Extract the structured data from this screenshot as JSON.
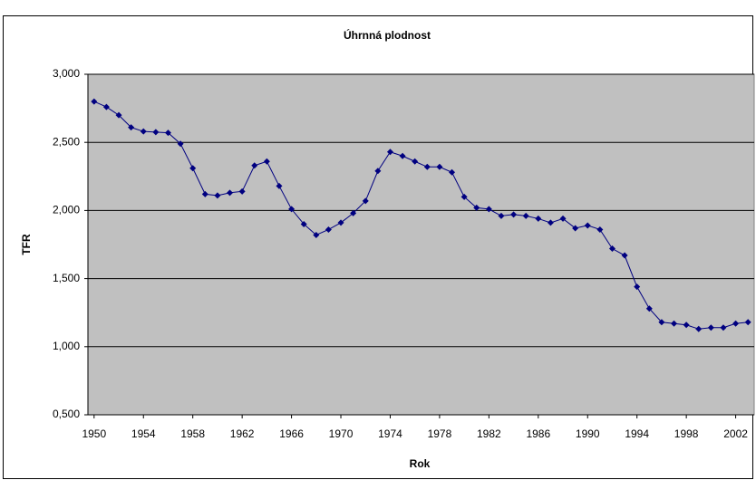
{
  "chart_data": {
    "type": "line",
    "title": "Úhrnná plodnost",
    "x_label": "Rok",
    "y_label": "TFR",
    "x": [
      1950,
      1951,
      1952,
      1953,
      1954,
      1955,
      1956,
      1957,
      1958,
      1959,
      1960,
      1961,
      1962,
      1963,
      1964,
      1965,
      1966,
      1967,
      1968,
      1969,
      1970,
      1971,
      1972,
      1973,
      1974,
      1975,
      1976,
      1977,
      1978,
      1979,
      1980,
      1981,
      1982,
      1983,
      1984,
      1985,
      1986,
      1987,
      1988,
      1989,
      1990,
      1991,
      1992,
      1993,
      1994,
      1995,
      1996,
      1997,
      1998,
      1999,
      2000,
      2001,
      2002,
      2003
    ],
    "series": [
      {
        "name": "TFR",
        "color": "#000080",
        "values": [
          2.8,
          2.76,
          2.7,
          2.61,
          2.58,
          2.575,
          2.57,
          2.49,
          2.31,
          2.12,
          2.11,
          2.13,
          2.14,
          2.33,
          2.36,
          2.18,
          2.01,
          1.9,
          1.82,
          1.86,
          1.91,
          1.98,
          2.07,
          2.29,
          2.43,
          2.4,
          2.36,
          2.32,
          2.32,
          2.28,
          2.1,
          2.02,
          2.01,
          1.96,
          1.97,
          1.96,
          1.94,
          1.91,
          1.94,
          1.87,
          1.89,
          1.86,
          1.72,
          1.67,
          1.44,
          1.28,
          1.18,
          1.17,
          1.16,
          1.13,
          1.14,
          1.14,
          1.17,
          1.18
        ]
      }
    ],
    "xlim": [
      1949.5,
      2003.5
    ],
    "xticks": [
      1950,
      1954,
      1958,
      1962,
      1966,
      1970,
      1974,
      1978,
      1982,
      1986,
      1990,
      1994,
      1998,
      2002
    ],
    "ylim": [
      0.5,
      3.0
    ],
    "yticks": [
      {
        "value": 0.5,
        "label": "0,500"
      },
      {
        "value": 1.0,
        "label": "1,000"
      },
      {
        "value": 1.5,
        "label": "1,500"
      },
      {
        "value": 2.0,
        "label": "2,000"
      },
      {
        "value": 2.5,
        "label": "2,500"
      },
      {
        "value": 3.0,
        "label": "3,000"
      }
    ],
    "grid": true,
    "plot_background": "#c0c0c0"
  }
}
